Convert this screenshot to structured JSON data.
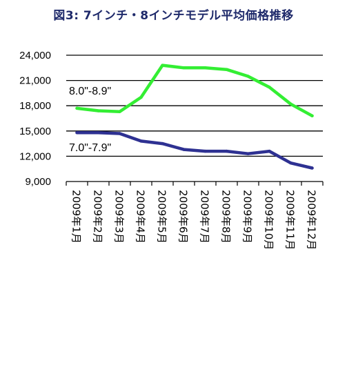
{
  "chart_data": {
    "type": "line",
    "title": "図3: 7インチ・8インチモデル平均価格推移",
    "xlabel": "",
    "ylabel": "",
    "categories": [
      "2009年1月",
      "2009年2月",
      "2009年3月",
      "2009年4月",
      "2009年5月",
      "2009年6月",
      "2009年7月",
      "2009年8月",
      "2009年9月",
      "2009年10月",
      "2009年11月",
      "2009年12月"
    ],
    "ylim": [
      9000,
      24000
    ],
    "yticks": [
      "9,000",
      "12,000",
      "15,000",
      "18,000",
      "21,000",
      "24,000"
    ],
    "grid": "horizontal",
    "legend": "none",
    "series": [
      {
        "name": "8.0\"-8.9\"",
        "color": "#33ee33",
        "values": [
          17700,
          17400,
          17300,
          19000,
          22800,
          22500,
          22500,
          22300,
          21500,
          20200,
          18200,
          16800
        ]
      },
      {
        "name": "7.0\"-7.9\"",
        "color": "#2e3192",
        "values": [
          14800,
          14800,
          14700,
          13800,
          13500,
          12800,
          12600,
          12600,
          12300,
          12600,
          11200,
          10600
        ]
      }
    ]
  }
}
